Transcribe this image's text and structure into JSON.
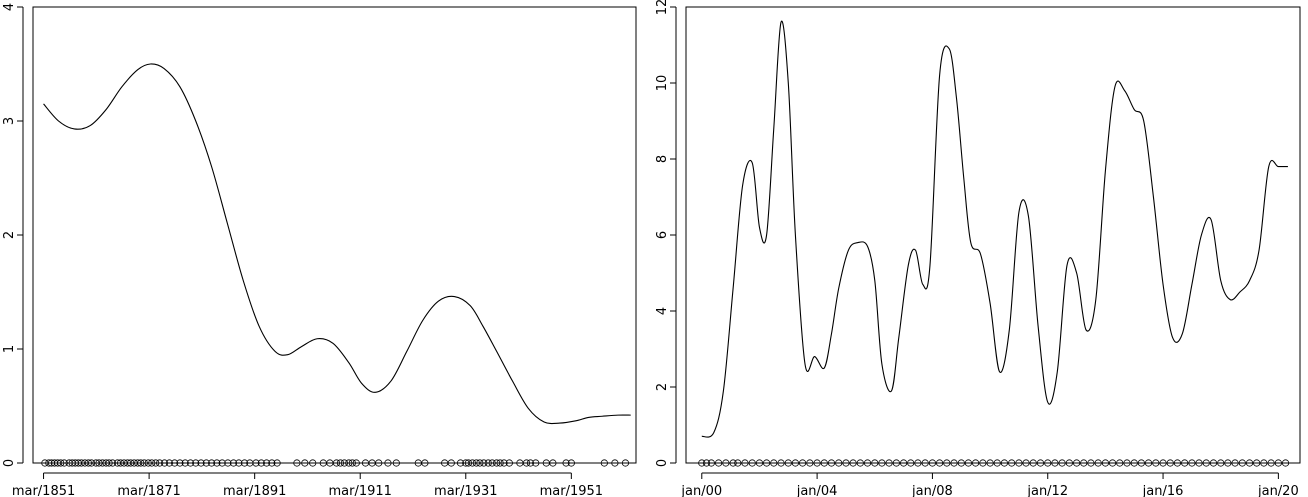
{
  "chart_data": [
    {
      "type": "line",
      "title": "",
      "xlabel": "",
      "ylabel": "",
      "x_axis": "date",
      "xlim": [
        "1849-03-01",
        "1963-06-01"
      ],
      "ylim": [
        0,
        4
      ],
      "x_ticks": [
        {
          "value": "1851-03-01",
          "label": "mar/1851"
        },
        {
          "value": "1871-03-01",
          "label": "mar/1871"
        },
        {
          "value": "1891-03-01",
          "label": "mar/1891"
        },
        {
          "value": "1911-03-01",
          "label": "mar/1911"
        },
        {
          "value": "1931-03-01",
          "label": "mar/1931"
        },
        {
          "value": "1951-03-01",
          "label": "mar/1951"
        }
      ],
      "y_ticks": [
        {
          "value": 0,
          "label": "0"
        },
        {
          "value": 1,
          "label": "1"
        },
        {
          "value": 2,
          "label": "2"
        },
        {
          "value": 3,
          "label": "3"
        },
        {
          "value": 4,
          "label": "4"
        }
      ],
      "series": [
        {
          "x": [
            "1851-03-01",
            "1854-01-01",
            "1857-01-01",
            "1860-01-01",
            "1863-01-01",
            "1866-01-01",
            "1869-01-01",
            "1871-06-01",
            "1874-01-01",
            "1877-01-01",
            "1880-01-01",
            "1883-01-01",
            "1886-01-01",
            "1889-01-01",
            "1892-01-01",
            "1895-01-01",
            "1897-06-01",
            "1900-01-01",
            "1903-01-01",
            "1906-01-01",
            "1909-01-01",
            "1911-06-01",
            "1914-01-01",
            "1917-01-01",
            "1920-01-01",
            "1923-01-01",
            "1926-01-01",
            "1929-01-01",
            "1932-01-01",
            "1934-06-01",
            "1937-01-01",
            "1940-01-01",
            "1943-01-01",
            "1946-01-01",
            "1949-01-01",
            "1952-01-01",
            "1954-06-01",
            "1957-01-01",
            "1960-01-01",
            "1962-06-01"
          ],
          "values": [
            3.15,
            3.0,
            2.93,
            2.96,
            3.1,
            3.3,
            3.45,
            3.5,
            3.46,
            3.3,
            3.0,
            2.6,
            2.1,
            1.6,
            1.2,
            0.98,
            0.95,
            1.02,
            1.09,
            1.05,
            0.88,
            0.7,
            0.62,
            0.72,
            0.98,
            1.25,
            1.42,
            1.46,
            1.38,
            1.2,
            0.98,
            0.72,
            0.48,
            0.36,
            0.35,
            0.37,
            0.4,
            0.41,
            0.42,
            0.42
          ]
        }
      ],
      "rug_points": [
        "1851-06-01",
        "1852-03-01",
        "1852-09-01",
        "1853-04-01",
        "1853-11-01",
        "1854-06-01",
        "1855-02-01",
        "1856-01-01",
        "1856-08-01",
        "1857-03-01",
        "1857-10-01",
        "1858-05-01",
        "1859-01-01",
        "1859-09-01",
        "1860-04-01",
        "1861-02-01",
        "1861-09-01",
        "1862-05-01",
        "1863-01-01",
        "1863-08-01",
        "1864-04-01",
        "1865-03-01",
        "1865-10-01",
        "1866-06-01",
        "1867-02-01",
        "1867-09-01",
        "1868-05-01",
        "1869-01-01",
        "1869-08-01",
        "1870-04-01",
        "1871-01-01",
        "1871-09-01",
        "1872-06-01",
        "1873-03-01",
        "1874-02-01",
        "1875-01-01",
        "1876-01-01",
        "1877-01-01",
        "1878-01-01",
        "1879-01-01",
        "1880-01-01",
        "1881-01-01",
        "1882-01-01",
        "1883-01-01",
        "1884-01-01",
        "1885-01-01",
        "1886-02-01",
        "1887-03-01",
        "1888-03-01",
        "1889-04-01",
        "1890-04-01",
        "1891-06-01",
        "1892-06-01",
        "1893-06-01",
        "1894-06-01",
        "1895-06-01",
        "1899-03-01",
        "1900-09-01",
        "1902-03-01",
        "1904-03-01",
        "1905-06-01",
        "1906-09-01",
        "1907-06-01",
        "1908-03-01",
        "1909-01-01",
        "1909-09-01",
        "1910-06-01",
        "1912-03-01",
        "1913-06-01",
        "1914-09-01",
        "1916-06-01",
        "1918-01-01",
        "1922-03-01",
        "1923-06-01",
        "1927-03-01",
        "1928-06-01",
        "1930-03-01",
        "1931-03-01",
        "1931-09-01",
        "1932-06-01",
        "1933-03-01",
        "1933-11-01",
        "1934-08-01",
        "1935-06-01",
        "1936-03-01",
        "1937-01-01",
        "1937-09-01",
        "1938-06-01",
        "1939-06-01",
        "1941-06-01",
        "1942-09-01",
        "1943-06-01",
        "1944-06-01",
        "1946-06-01",
        "1947-09-01",
        "1950-03-01",
        "1951-03-01",
        "1957-06-01",
        "1959-06-01",
        "1961-06-01"
      ]
    },
    {
      "type": "line",
      "title": "",
      "xlabel": "",
      "ylabel": "",
      "x_axis": "date",
      "xlim": [
        "1999-06-15",
        "2020-10-01"
      ],
      "ylim": [
        0,
        12
      ],
      "x_ticks": [
        {
          "value": "2000-01-01",
          "label": "jan/00"
        },
        {
          "value": "2004-01-01",
          "label": "jan/04"
        },
        {
          "value": "2008-01-01",
          "label": "jan/08"
        },
        {
          "value": "2012-01-01",
          "label": "jan/12"
        },
        {
          "value": "2016-01-01",
          "label": "jan/16"
        },
        {
          "value": "2020-01-01",
          "label": "jan/20"
        }
      ],
      "y_ticks": [
        {
          "value": 0,
          "label": "0"
        },
        {
          "value": 2,
          "label": "2"
        },
        {
          "value": 4,
          "label": "4"
        },
        {
          "value": 6,
          "label": "6"
        },
        {
          "value": 8,
          "label": "8"
        },
        {
          "value": 10,
          "label": "10"
        },
        {
          "value": 12,
          "label": "12"
        }
      ],
      "series": [
        {
          "x": [
            "2000-01-01",
            "2000-06-01",
            "2000-10-01",
            "2001-02-01",
            "2001-06-01",
            "2001-10-01",
            "2002-01-01",
            "2002-04-01",
            "2002-07-01",
            "2002-10-01",
            "2003-01-01",
            "2003-04-01",
            "2003-08-01",
            "2003-12-01",
            "2004-04-01",
            "2004-07-01",
            "2004-10-01",
            "2005-02-01",
            "2005-06-01",
            "2005-10-01",
            "2006-01-01",
            "2006-04-01",
            "2006-08-01",
            "2006-11-01",
            "2007-03-01",
            "2007-06-01",
            "2007-09-01",
            "2007-12-01",
            "2008-04-01",
            "2008-08-01",
            "2008-11-01",
            "2009-02-01",
            "2009-05-01",
            "2009-09-01",
            "2010-01-01",
            "2010-05-01",
            "2010-09-01",
            "2011-01-01",
            "2011-05-01",
            "2011-09-01",
            "2012-01-01",
            "2012-05-01",
            "2012-09-01",
            "2013-01-01",
            "2013-05-01",
            "2013-09-01",
            "2014-01-01",
            "2014-05-01",
            "2014-09-01",
            "2015-01-01",
            "2015-05-01",
            "2015-09-01",
            "2016-01-01",
            "2016-05-01",
            "2016-09-01",
            "2017-01-01",
            "2017-05-01",
            "2017-09-01",
            "2018-01-01",
            "2018-05-01",
            "2018-09-01",
            "2019-01-01",
            "2019-05-01",
            "2019-09-01",
            "2020-01-01",
            "2020-05-01"
          ],
          "values": [
            0.7,
            0.8,
            1.9,
            4.6,
            7.3,
            7.9,
            6.2,
            6.0,
            8.8,
            11.6,
            10.0,
            6.0,
            2.6,
            2.8,
            2.5,
            3.4,
            4.6,
            5.6,
            5.8,
            5.7,
            4.8,
            2.6,
            1.9,
            3.3,
            5.2,
            5.6,
            4.7,
            5.2,
            10.2,
            10.9,
            9.6,
            7.5,
            5.8,
            5.5,
            4.2,
            2.4,
            3.5,
            6.6,
            6.5,
            3.6,
            1.6,
            2.4,
            5.2,
            5.0,
            3.5,
            4.3,
            7.7,
            9.9,
            9.8,
            9.3,
            9.0,
            7.0,
            4.7,
            3.3,
            3.4,
            4.7,
            6.0,
            6.4,
            4.8,
            4.3,
            4.5,
            4.8,
            5.6,
            7.8,
            7.8,
            7.8
          ]
        }
      ],
      "rug_points": [
        "2000-01-01",
        "2000-03-01",
        "2000-05-01",
        "2000-08-01",
        "2000-11-01",
        "2001-02-01",
        "2001-04-01",
        "2001-07-01",
        "2001-10-01",
        "2002-01-01",
        "2002-04-01",
        "2002-07-01",
        "2002-10-01",
        "2003-01-01",
        "2003-04-01",
        "2003-07-01",
        "2003-10-01",
        "2004-01-01",
        "2004-04-01",
        "2004-07-01",
        "2004-10-01",
        "2005-01-01",
        "2005-04-01",
        "2005-07-01",
        "2005-10-01",
        "2006-01-01",
        "2006-04-01",
        "2006-07-01",
        "2006-10-01",
        "2007-01-01",
        "2007-04-01",
        "2007-07-01",
        "2007-10-01",
        "2008-01-01",
        "2008-04-01",
        "2008-07-01",
        "2008-10-01",
        "2009-01-01",
        "2009-04-01",
        "2009-07-01",
        "2009-10-01",
        "2010-01-01",
        "2010-04-01",
        "2010-07-01",
        "2010-10-01",
        "2011-01-01",
        "2011-04-01",
        "2011-07-01",
        "2011-10-01",
        "2012-01-01",
        "2012-04-01",
        "2012-07-01",
        "2012-10-01",
        "2013-01-01",
        "2013-04-01",
        "2013-07-01",
        "2013-10-01",
        "2014-01-01",
        "2014-04-01",
        "2014-07-01",
        "2014-10-01",
        "2015-01-01",
        "2015-04-01",
        "2015-07-01",
        "2015-10-01",
        "2016-01-01",
        "2016-04-01",
        "2016-07-01",
        "2016-10-01",
        "2017-01-01",
        "2017-04-01",
        "2017-07-01",
        "2017-10-01",
        "2018-01-01",
        "2018-04-01",
        "2018-07-01",
        "2018-10-01",
        "2019-01-01",
        "2019-04-01",
        "2019-07-01",
        "2019-10-01",
        "2020-01-01",
        "2020-04-01"
      ]
    }
  ]
}
